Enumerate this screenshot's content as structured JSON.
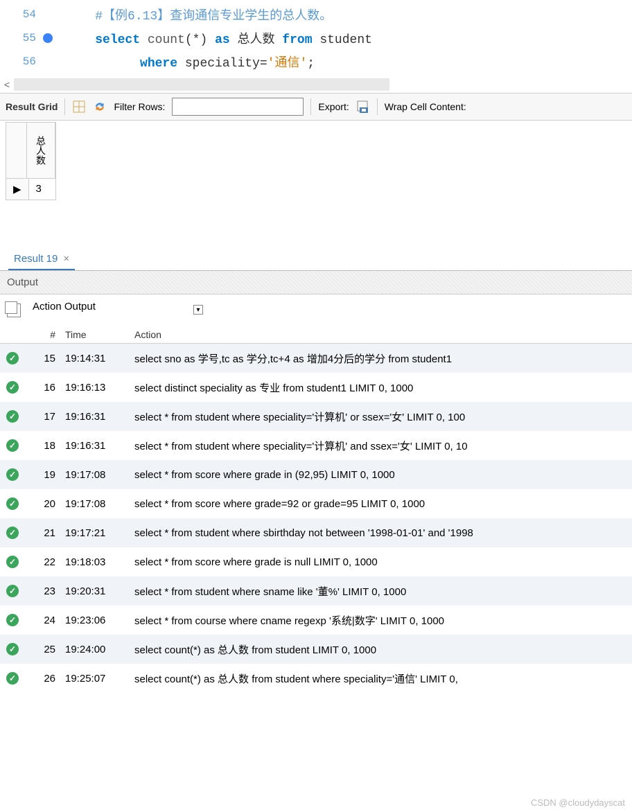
{
  "editor": {
    "lines": [
      {
        "num": "54",
        "bp": false,
        "indent": "    ",
        "tokens": [
          {
            "cls": "cmt",
            "t": "#【例6.13】查询通信专业学生的总人数。"
          }
        ]
      },
      {
        "num": "55",
        "bp": true,
        "indent": "    ",
        "tokens": [
          {
            "cls": "kw",
            "t": "select"
          },
          {
            "cls": "txt",
            "t": " "
          },
          {
            "cls": "fn",
            "t": "count"
          },
          {
            "cls": "txt",
            "t": "(*) "
          },
          {
            "cls": "kw",
            "t": "as"
          },
          {
            "cls": "txt",
            "t": " 总人数 "
          },
          {
            "cls": "kw",
            "t": "from"
          },
          {
            "cls": "txt",
            "t": " student"
          }
        ]
      },
      {
        "num": "56",
        "bp": false,
        "indent": "          ",
        "tokens": [
          {
            "cls": "kw",
            "t": "where"
          },
          {
            "cls": "txt",
            "t": " speciality="
          },
          {
            "cls": "str",
            "t": "'通信'"
          },
          {
            "cls": "txt",
            "t": ";"
          }
        ]
      }
    ]
  },
  "toolbar": {
    "result_grid": "Result Grid",
    "filter_label": "Filter Rows:",
    "filter_value": "",
    "export_label": "Export:",
    "wrap_label": "Wrap Cell Content:"
  },
  "grid": {
    "header": "总人数",
    "row_marker": "▶",
    "value": "3"
  },
  "result_tab": {
    "label": "Result 19",
    "close": "×"
  },
  "output": {
    "title": "Output",
    "selector": "Action Output",
    "columns": {
      "num": "#",
      "time": "Time",
      "action": "Action"
    },
    "rows": [
      {
        "n": "15",
        "time": "19:14:31",
        "action": "select sno as 学号,tc as 学分,tc+4 as 增加4分后的学分 from student1"
      },
      {
        "n": "16",
        "time": "19:16:13",
        "action": "select distinct speciality as 专业 from student1 LIMIT 0, 1000"
      },
      {
        "n": "17",
        "time": "19:16:31",
        "action": "select * from student where speciality='计算机' or ssex='女' LIMIT 0, 100"
      },
      {
        "n": "18",
        "time": "19:16:31",
        "action": "select * from student where speciality='计算机' and ssex='女' LIMIT 0, 10"
      },
      {
        "n": "19",
        "time": "19:17:08",
        "action": "select * from score where grade in (92,95) LIMIT 0, 1000"
      },
      {
        "n": "20",
        "time": "19:17:08",
        "action": "select * from score where grade=92 or grade=95 LIMIT 0, 1000"
      },
      {
        "n": "21",
        "time": "19:17:21",
        "action": "select * from student where sbirthday not between '1998-01-01' and '1998"
      },
      {
        "n": "22",
        "time": "19:18:03",
        "action": "select * from score where grade is null LIMIT 0, 1000"
      },
      {
        "n": "23",
        "time": "19:20:31",
        "action": "select * from student where sname like '董%' LIMIT 0, 1000"
      },
      {
        "n": "24",
        "time": "19:23:06",
        "action": "select * from course where cname regexp '系统|数字' LIMIT 0, 1000"
      },
      {
        "n": "25",
        "time": "19:24:00",
        "action": "select count(*) as 总人数 from student LIMIT 0, 1000"
      },
      {
        "n": "26",
        "time": "19:25:07",
        "action": "select count(*) as 总人数 from student  where speciality='通信' LIMIT 0,"
      }
    ]
  },
  "watermark": "CSDN @cloudydayscat",
  "colors": {
    "keyword": "#0077cc",
    "comment": "#5b9bd5",
    "string": "#d97706",
    "link": "#3b7ab8",
    "ok": "#3ba55c",
    "row_alt": "#f0f4f8"
  }
}
